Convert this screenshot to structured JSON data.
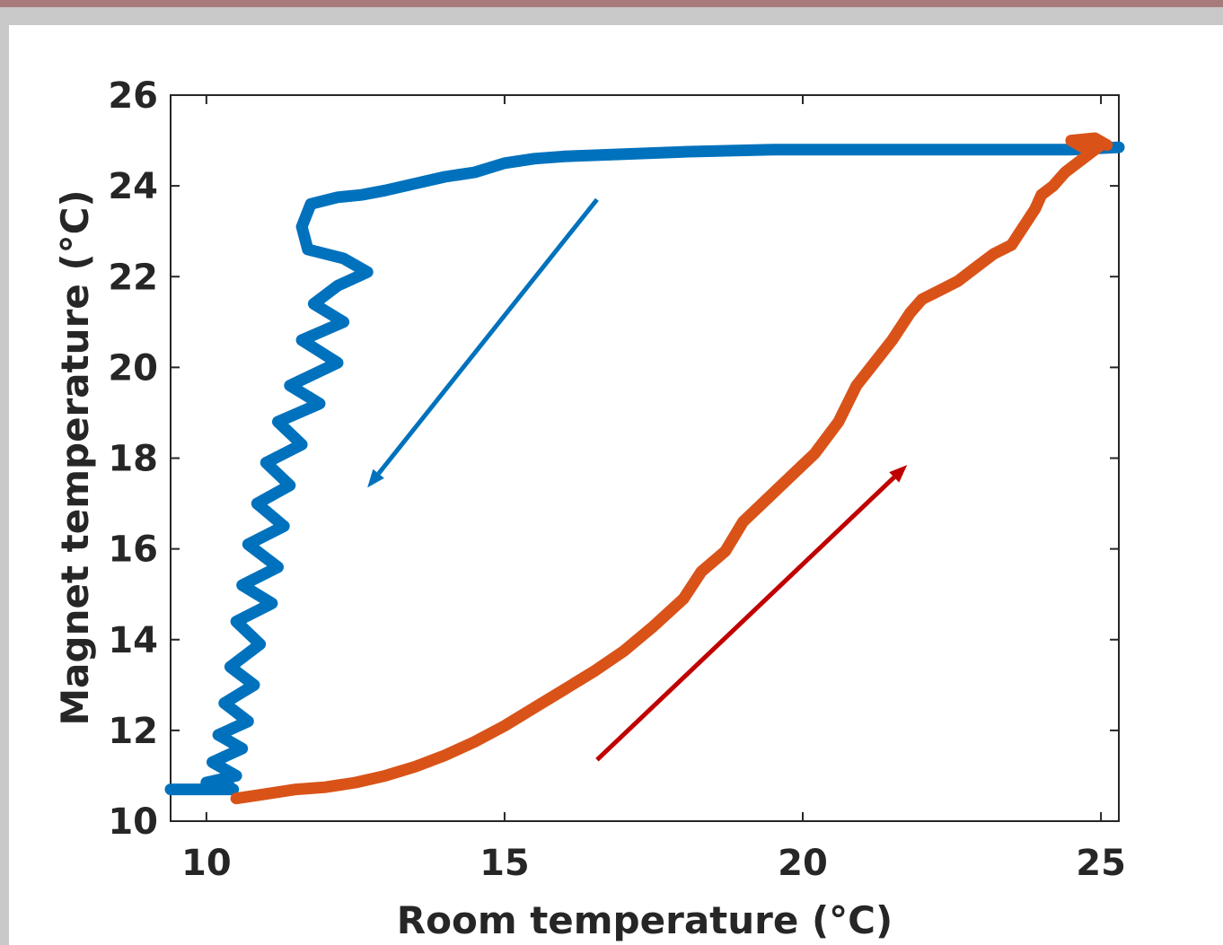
{
  "chart_data": {
    "type": "line",
    "title": "",
    "xlabel": "Room temperature (°C)",
    "ylabel": "Magnet temperature (°C)",
    "xlim": [
      9.4,
      25.3
    ],
    "ylim": [
      10,
      26
    ],
    "xticks": [
      10,
      15,
      20,
      25
    ],
    "yticks": [
      10,
      12,
      14,
      16,
      18,
      20,
      22,
      24,
      26
    ],
    "grid": false,
    "legend": "none",
    "series": [
      {
        "color": "#0072BD",
        "x": [
          25.3,
          24.5,
          23.0,
          21.0,
          19.5,
          18.0,
          17.0,
          16.0,
          15.5,
          15.0,
          14.5,
          14.0,
          13.5,
          13.0,
          12.6,
          12.2,
          11.9,
          11.75,
          11.6,
          11.7,
          12.3,
          12.7,
          12.2,
          11.8,
          12.3,
          11.6,
          12.2,
          11.4,
          11.9,
          11.2,
          11.6,
          11.0,
          11.4,
          10.85,
          11.3,
          10.7,
          11.2,
          10.6,
          11.1,
          10.5,
          10.9,
          10.4,
          10.8,
          10.3,
          10.7,
          10.2,
          10.6,
          10.1,
          10.5,
          10.0,
          10.4,
          9.9,
          9.6,
          9.4,
          10.2,
          10.45
        ],
        "y": [
          24.85,
          24.8,
          24.8,
          24.8,
          24.8,
          24.75,
          24.7,
          24.65,
          24.6,
          24.5,
          24.3,
          24.2,
          24.05,
          23.9,
          23.8,
          23.75,
          23.65,
          23.6,
          23.1,
          22.6,
          22.4,
          22.1,
          21.8,
          21.4,
          21.0,
          20.6,
          20.1,
          19.6,
          19.2,
          18.8,
          18.3,
          17.9,
          17.4,
          17.0,
          16.5,
          16.1,
          15.6,
          15.2,
          14.8,
          14.4,
          13.9,
          13.4,
          13.0,
          12.6,
          12.2,
          11.9,
          11.6,
          11.3,
          11.0,
          10.85,
          10.75,
          10.7,
          10.7,
          10.7,
          10.7,
          10.7
        ]
      },
      {
        "color": "#D95319",
        "x": [
          10.5,
          11.0,
          11.5,
          12.0,
          12.5,
          13.0,
          13.5,
          14.0,
          14.5,
          15.0,
          15.5,
          16.0,
          16.5,
          17.0,
          17.5,
          18.0,
          18.3,
          18.7,
          19.0,
          19.4,
          19.8,
          20.2,
          20.6,
          20.9,
          21.2,
          21.5,
          21.8,
          22.0,
          22.3,
          22.6,
          22.9,
          23.2,
          23.5,
          23.8,
          23.9,
          24.0,
          24.2,
          24.4,
          24.6,
          24.8,
          25.0,
          24.7,
          24.5,
          24.9,
          25.1
        ],
        "y": [
          10.5,
          10.6,
          10.7,
          10.75,
          10.85,
          11.0,
          11.2,
          11.45,
          11.75,
          12.1,
          12.5,
          12.9,
          13.3,
          13.75,
          14.3,
          14.9,
          15.5,
          15.95,
          16.6,
          17.1,
          17.6,
          18.1,
          18.8,
          19.6,
          20.1,
          20.6,
          21.2,
          21.5,
          21.7,
          21.9,
          22.2,
          22.5,
          22.7,
          23.3,
          23.5,
          23.8,
          24.0,
          24.3,
          24.5,
          24.7,
          24.9,
          24.85,
          25.0,
          25.05,
          24.9
        ]
      }
    ],
    "annotations": [
      {
        "type": "arrow",
        "color": "#0072BD",
        "from": [
          16.55,
          23.7
        ],
        "to": [
          12.7,
          17.35
        ]
      },
      {
        "type": "arrow",
        "color": "#C00000",
        "from": [
          16.55,
          11.35
        ],
        "to": [
          21.75,
          17.85
        ]
      }
    ]
  }
}
